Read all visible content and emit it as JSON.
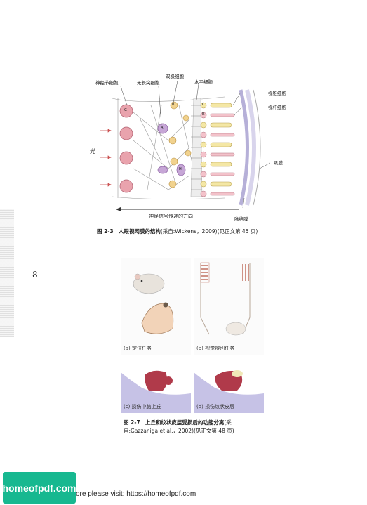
{
  "figure_2_3": {
    "labels": {
      "ganglion": "神经节细胞",
      "amacrine": "无长突细胞",
      "bipolar": "双极细胞",
      "horizontal": "水平细胞",
      "cone": "视锥细胞",
      "rod": "视杆细胞",
      "sclera": "巩膜",
      "choroid": "脉络膜",
      "light": "光",
      "direction": "神经信号传递的方向"
    },
    "cell_letters": [
      "G",
      "A",
      "B",
      "H",
      "C",
      "R"
    ],
    "caption_no": "图 2-3",
    "caption_title": "人眼视网膜的结构",
    "caption_rest": "(采自:Wickens，2009)(见正文第 45 页)"
  },
  "page_number": "8",
  "figure_2_7": {
    "panel_a": "(a) 定位任务",
    "panel_b": "(b) 视觉辨别任务",
    "panel_c": "(c) 损伤中脑上丘",
    "panel_d": "(d) 损伤纹状皮层",
    "caption_no": "图 2-7",
    "caption_title": "上丘和纹状皮层受损后的功能分离",
    "caption_rest_1": "(采",
    "caption_rest_2": "自:Gazzaniga et al.，2002)(见正文第 48 页)"
  },
  "watermark": {
    "logo_text": "homeofpdf.com",
    "footer_text": "ore please visit: https://homeofpdf.com"
  },
  "colors": {
    "ganglion": "#e9a3ad",
    "bipolar": "#f1d28e",
    "amacrine": "#c6a6d6",
    "cone": "#f4e7a5",
    "rod": "#f3c2ca",
    "sclera_band": "#b6b0d8",
    "lesion_bg": "#c6c2e6",
    "lesion_red": "#b03a4a"
  }
}
